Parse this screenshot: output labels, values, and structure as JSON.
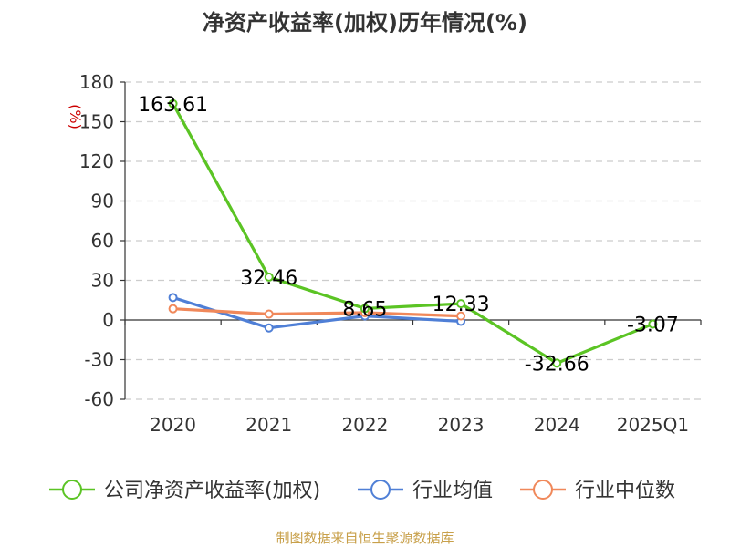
{
  "chart_data": {
    "type": "line",
    "title": "净资产收益率(加权)历年情况(%)",
    "ylabel": "(%)",
    "categories": [
      "2020",
      "2021",
      "2022",
      "2023",
      "2024",
      "2025Q1"
    ],
    "ylim": [
      -60,
      180
    ],
    "yticks": [
      180,
      150,
      120,
      90,
      60,
      30,
      0,
      -30,
      -60
    ],
    "grid": true,
    "legend_position": "bottom",
    "series": [
      {
        "name": "公司净资产收益率(加权)",
        "color": "#5bc424",
        "values": [
          163.61,
          32.46,
          8.65,
          12.33,
          -32.66,
          -3.07
        ],
        "labels": [
          "163.61",
          "32.46",
          "8.65",
          "12.33",
          "-32.66",
          "-3.07"
        ]
      },
      {
        "name": "行业均值",
        "color": "#4f7fd6",
        "values": [
          17.0,
          -6.0,
          3.0,
          -1.0,
          null,
          null
        ]
      },
      {
        "name": "行业中位数",
        "color": "#f0885a",
        "values": [
          8.5,
          4.5,
          5.5,
          3.0,
          null,
          null
        ]
      }
    ]
  },
  "source": "制图数据来自恒生聚源数据库"
}
